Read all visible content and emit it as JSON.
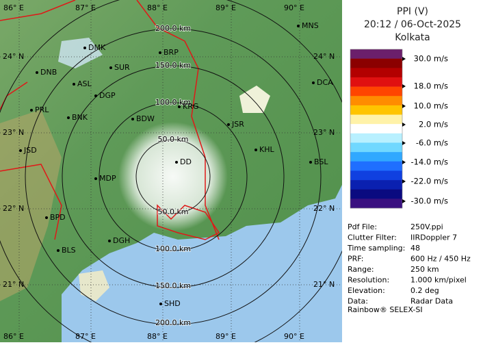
{
  "map": {
    "top_lon_labels": [
      "86° E",
      "87° E",
      "88° E",
      "89° E",
      "90° E"
    ],
    "bottom_lon_labels": [
      "86° E",
      "87° E",
      "88° E",
      "89° E",
      "90° E"
    ],
    "left_lat_labels": [
      "24° N",
      "23° N",
      "22° N",
      "21° N"
    ],
    "right_lat_labels": [
      "24° N",
      "23° N",
      "22° N",
      "21° N"
    ],
    "north_range_labels": [
      "200.0 km",
      "150.0 km",
      "100.0 km",
      "50.0 km"
    ],
    "south_range_labels": [
      "50.0 km",
      "100.0 km",
      "150.0 km",
      "200.0 km"
    ],
    "cities": [
      "DMK",
      "BRP",
      "SUR",
      "DNB",
      "ASL",
      "DGP",
      "MNS",
      "DCA",
      "PRL",
      "BNK",
      "BDW",
      "KRG",
      "JSR",
      "KHL",
      "JSD",
      "BSL",
      "MDP",
      "DD",
      "BPD",
      "DGH",
      "BLS",
      "SHD"
    ]
  },
  "panel": {
    "title": [
      "PPI (V)",
      "20:12 / 06-Oct-2025",
      "Kolkata"
    ],
    "scale_labels": [
      "30.0 m/s",
      "18.0 m/s",
      "10.0 m/s",
      "2.0 m/s",
      "-6.0 m/s",
      "-14.0 m/s",
      "-22.0 m/s",
      "-30.0 m/s"
    ],
    "info": [
      [
        "Pdf File:",
        "250V.ppi"
      ],
      [
        "Clutter Filter:",
        "IIRDoppler 7"
      ],
      [
        "Time sampling:",
        "48"
      ],
      [
        "PRF:",
        "600 Hz / 450 Hz"
      ],
      [
        "Range:",
        "250 km"
      ],
      [
        "Resolution:",
        "1.000 km/pixel"
      ],
      [
        "Elevation:",
        "0.2 deg"
      ],
      [
        "Data:",
        "Radar Data"
      ]
    ],
    "footer": "Rainbow® SELEX-SI"
  }
}
